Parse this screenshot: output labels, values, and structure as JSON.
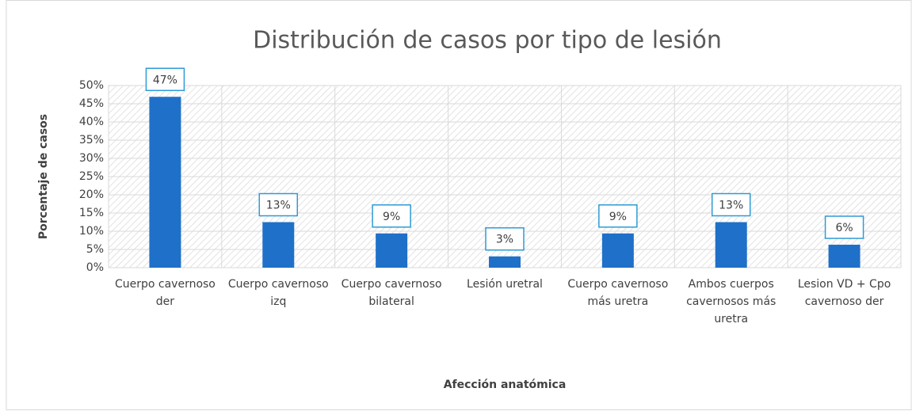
{
  "chart_data": {
    "type": "bar",
    "title": "Distribución de casos por tipo de lesión",
    "x_label": "Afección anatómica",
    "y_label": "Porcentaje de casos",
    "categories": [
      "Cuerpo cavernoso der",
      "Cuerpo cavernoso izq",
      "Cuerpo cavernoso bilateral",
      "Lesión uretral",
      "Cuerpo cavernoso más uretra",
      "Ambos cuerpos cavernosos más uretra",
      "Lesion VD + Cpo cavernoso der"
    ],
    "values": [
      46.9,
      12.5,
      9.4,
      3.1,
      9.4,
      12.5,
      6.3
    ],
    "value_labels": [
      "47%",
      "13%",
      "9%",
      "3%",
      "9%",
      "13%",
      "6%"
    ],
    "color": "#1f70c8",
    "ylim": [
      0,
      50
    ],
    "yticks": [
      {
        "value": 0,
        "label": "0%"
      },
      {
        "value": 5,
        "label": "5%"
      },
      {
        "value": 10,
        "label": "10%"
      },
      {
        "value": 15,
        "label": "15%"
      },
      {
        "value": 20,
        "label": "20%"
      },
      {
        "value": 25,
        "label": "25%"
      },
      {
        "value": 30,
        "label": "30%"
      },
      {
        "value": 35,
        "label": "35%"
      },
      {
        "value": 40,
        "label": "40%"
      },
      {
        "value": 45,
        "label": "45%"
      },
      {
        "value": 50,
        "label": "50%"
      }
    ],
    "grid": true
  }
}
